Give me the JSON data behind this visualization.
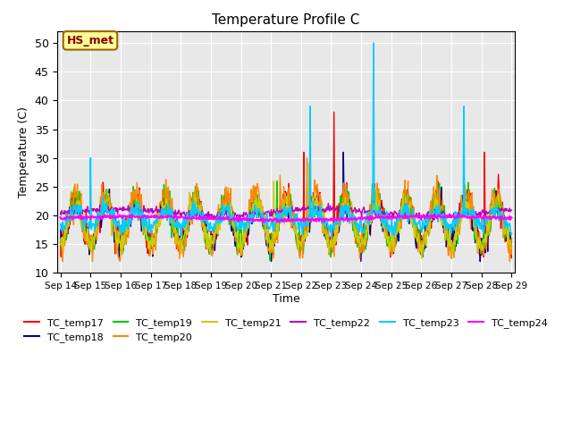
{
  "title": "Temperature Profile C",
  "xlabel": "Time",
  "ylabel": "Temperature (C)",
  "ylim": [
    10,
    52
  ],
  "yticks": [
    10,
    15,
    20,
    25,
    30,
    35,
    40,
    45,
    50
  ],
  "annotation": "HS_met",
  "bg_color": "#e8e8e8",
  "series_order": [
    "TC_temp17",
    "TC_temp18",
    "TC_temp19",
    "TC_temp20",
    "TC_temp21",
    "TC_temp22",
    "TC_temp23",
    "TC_temp24"
  ],
  "series": {
    "TC_temp17": {
      "color": "#ff0000",
      "lw": 1.0
    },
    "TC_temp18": {
      "color": "#00008b",
      "lw": 1.0
    },
    "TC_temp19": {
      "color": "#00cc00",
      "lw": 1.0
    },
    "TC_temp20": {
      "color": "#ff8800",
      "lw": 1.0
    },
    "TC_temp21": {
      "color": "#cccc00",
      "lw": 1.0
    },
    "TC_temp22": {
      "color": "#bb00bb",
      "lw": 1.0
    },
    "TC_temp23": {
      "color": "#00ccff",
      "lw": 1.2
    },
    "TC_temp24": {
      "color": "#ff00ff",
      "lw": 1.5
    }
  },
  "xtick_labels": [
    "Sep 14",
    "Sep 15",
    "Sep 16",
    "Sep 17",
    "Sep 18",
    "Sep 19",
    "Sep 20",
    "Sep 21",
    "Sep 22",
    "Sep 23",
    "Sep 24",
    "Sep 25",
    "Sep 26",
    "Sep 27",
    "Sep 28",
    "Sep 29"
  ],
  "n_days": 15,
  "points_per_day": 48,
  "start_day": 0
}
